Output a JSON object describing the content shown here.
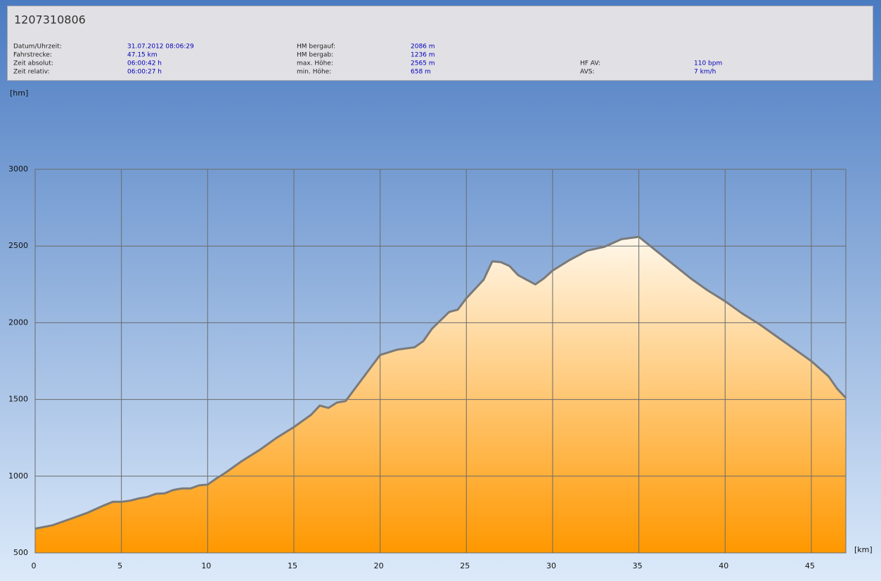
{
  "header": {
    "title": "1207310806",
    "columns": [
      [
        {
          "label": "Datum/Uhrzeit:",
          "value": "31.07.2012 08:06:29"
        },
        {
          "label": "Fahrstrecke:",
          "value": "47.15 km"
        },
        {
          "label": "Zeit absolut:",
          "value": "06:00:42 h"
        },
        {
          "label": "Zeit relativ:",
          "value": "06:00:27 h"
        }
      ],
      [
        {
          "label": "HM bergauf:",
          "value": "2086 m"
        },
        {
          "label": "HM bergab:",
          "value": "1236 m"
        },
        {
          "label": "max. Höhe:",
          "value": "2565 m"
        },
        {
          "label": "min. Höhe:",
          "value": "658 m"
        }
      ],
      [
        {
          "label": "HF AV:",
          "value": "110 bpm"
        },
        {
          "label": "AVS:",
          "value": "7 km/h"
        }
      ]
    ]
  },
  "chart_data": {
    "type": "area",
    "y_label": "[hm]",
    "x_label": "[km]",
    "x": [
      0,
      1,
      2,
      3,
      4,
      4.5,
      5,
      5.5,
      6,
      6.5,
      7,
      7.5,
      8,
      8.5,
      9,
      9.5,
      10,
      10.5,
      11,
      12,
      13,
      14,
      15,
      16,
      16.5,
      17,
      17.5,
      18,
      19,
      20,
      21,
      22,
      22.5,
      23,
      24,
      24.5,
      25,
      26,
      26.5,
      27,
      27.5,
      28,
      29,
      29.5,
      30,
      31,
      32,
      33,
      34,
      35,
      36,
      37,
      38,
      39,
      40,
      41,
      42,
      43,
      44,
      45,
      46,
      46.5,
      47
    ],
    "y": [
      658,
      680,
      720,
      760,
      810,
      833,
      833,
      840,
      855,
      865,
      885,
      888,
      910,
      920,
      920,
      940,
      945,
      985,
      1020,
      1100,
      1170,
      1250,
      1320,
      1400,
      1460,
      1445,
      1480,
      1490,
      1640,
      1790,
      1825,
      1840,
      1880,
      1960,
      2070,
      2085,
      2160,
      2280,
      2400,
      2395,
      2370,
      2310,
      2250,
      2290,
      2340,
      2410,
      2470,
      2495,
      2545,
      2560,
      2470,
      2380,
      2290,
      2210,
      2140,
      2060,
      1990,
      1910,
      1830,
      1750,
      1650,
      1570,
      1510
    ],
    "xlim": [
      0,
      47
    ],
    "ylim": [
      500,
      3000
    ],
    "xticks": [
      0,
      5,
      10,
      15,
      20,
      25,
      30,
      35,
      40,
      45
    ],
    "yticks": [
      500,
      1000,
      1500,
      2000,
      2500,
      3000
    ],
    "grid": true,
    "color": "#7a7a7a",
    "fill": [
      "#fff7ea",
      "#ff9800"
    ]
  }
}
